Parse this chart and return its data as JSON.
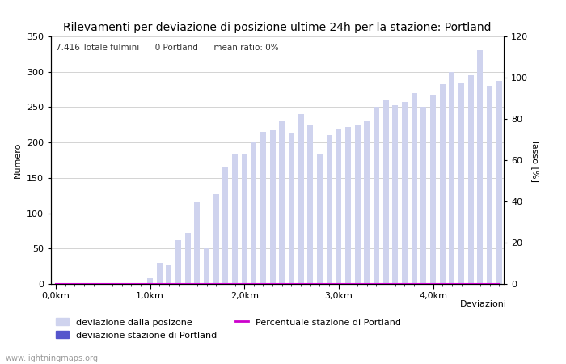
{
  "title": "Rilevamenti per deviazione di posizione ultime 24h per la stazione: Portland",
  "subtitle": "7.416 Totale fulmini      0 Portland      mean ratio: 0%",
  "xlabel": "Deviazioni",
  "ylabel_left": "Numero",
  "ylabel_right": "Tasso [%]",
  "watermark": "www.lightningmaps.org",
  "bar_values": [
    0,
    0,
    0,
    0,
    0,
    0,
    0,
    0,
    0,
    0,
    8,
    30,
    27,
    62,
    72,
    115,
    50,
    127,
    165,
    183,
    184,
    200,
    215,
    217,
    230,
    213,
    240,
    225,
    183,
    210,
    220,
    222,
    225,
    230,
    250,
    260,
    253,
    257,
    270,
    250,
    267,
    283,
    300,
    284,
    295,
    330,
    280,
    287
  ],
  "bar_color_light": "#cfd3ee",
  "bar_color_dark": "#5555cc",
  "line_color": "#cc00cc",
  "line_values": [
    0,
    0,
    0,
    0,
    0,
    0,
    0,
    0,
    0,
    0,
    0,
    0,
    0,
    0,
    0,
    0,
    0,
    0,
    0,
    0,
    0,
    0,
    0,
    0,
    0,
    0,
    0,
    0,
    0,
    0,
    0,
    0,
    0,
    0,
    0,
    0,
    0,
    0,
    0,
    0,
    0,
    0,
    0,
    0,
    0,
    0,
    0,
    0
  ],
  "xtick_positions": [
    0,
    10,
    20,
    30,
    40
  ],
  "xtick_labels": [
    "0,0km",
    "1,0km",
    "2,0km",
    "3,0km",
    "4,0km"
  ],
  "ylim_left": [
    0,
    350
  ],
  "ylim_right": [
    0,
    120
  ],
  "yticks_left": [
    0,
    50,
    100,
    150,
    200,
    250,
    300,
    350
  ],
  "yticks_right": [
    0,
    20,
    40,
    60,
    80,
    100,
    120
  ],
  "background_color": "#ffffff",
  "grid_color": "#cccccc",
  "n_bars": 48,
  "legend_label_light": "deviazione dalla posizone",
  "legend_label_dark": "deviazione stazione di Portland",
  "legend_label_line": "Percentuale stazione di Portland",
  "title_fontsize": 10,
  "axis_fontsize": 8,
  "tick_fontsize": 8
}
